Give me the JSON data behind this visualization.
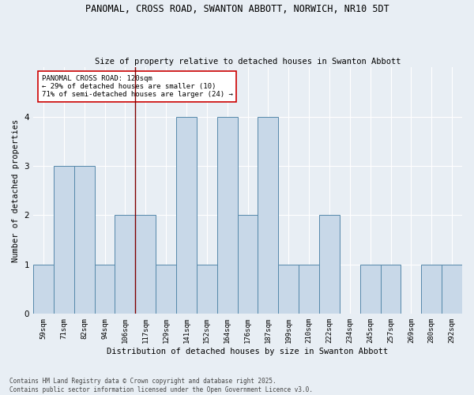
{
  "title": "PANOMAL, CROSS ROAD, SWANTON ABBOTT, NORWICH, NR10 5DT",
  "subtitle": "Size of property relative to detached houses in Swanton Abbott",
  "xlabel": "Distribution of detached houses by size in Swanton Abbott",
  "ylabel": "Number of detached properties",
  "bins": [
    "59sqm",
    "71sqm",
    "82sqm",
    "94sqm",
    "106sqm",
    "117sqm",
    "129sqm",
    "141sqm",
    "152sqm",
    "164sqm",
    "176sqm",
    "187sqm",
    "199sqm",
    "210sqm",
    "222sqm",
    "234sqm",
    "245sqm",
    "257sqm",
    "269sqm",
    "280sqm",
    "292sqm"
  ],
  "values": [
    1,
    3,
    3,
    1,
    2,
    2,
    1,
    4,
    1,
    4,
    2,
    4,
    1,
    1,
    2,
    0,
    1,
    1,
    0,
    1,
    1
  ],
  "bar_color": "#c8d8e8",
  "bar_edge_color": "#5588aa",
  "vline_x_idx": 5,
  "vline_color": "#800000",
  "annotation_text": "PANOMAL CROSS ROAD: 120sqm\n← 29% of detached houses are smaller (10)\n71% of semi-detached houses are larger (24) →",
  "annotation_box_color": "white",
  "annotation_box_edge": "#cc0000",
  "ylim": [
    0,
    5
  ],
  "yticks": [
    0,
    1,
    2,
    3,
    4,
    5
  ],
  "bg_color": "#e8eef4",
  "footer": "Contains HM Land Registry data © Crown copyright and database right 2025.\nContains public sector information licensed under the Open Government Licence v3.0."
}
